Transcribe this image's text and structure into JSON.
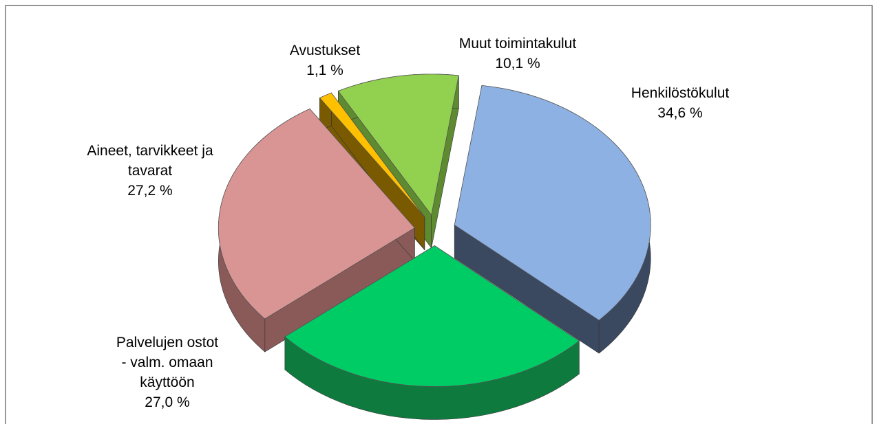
{
  "chart_data": {
    "type": "pie",
    "categories": [
      "Henkilöstökulut",
      "Palvelujen ostot\n- valm. omaan\nkäyttöön",
      "Aineet, tarvikkeet ja\ntavarat",
      "Avustukset",
      "Muut toimintakulut"
    ],
    "values": [
      34.6,
      27.0,
      27.2,
      1.1,
      10.1
    ],
    "value_labels": [
      "34,6 %",
      "27,0 %",
      "27,2 %",
      "1,1 %",
      "10,1 %"
    ],
    "colors": [
      "#8eb1e3",
      "#00cc66",
      "#d99594",
      "#ffc000",
      "#92d050"
    ],
    "side_colors": [
      "#3a4960",
      "#0f7a3e",
      "#8a5a59",
      "#7a5a00",
      "#5e8a30"
    ]
  }
}
